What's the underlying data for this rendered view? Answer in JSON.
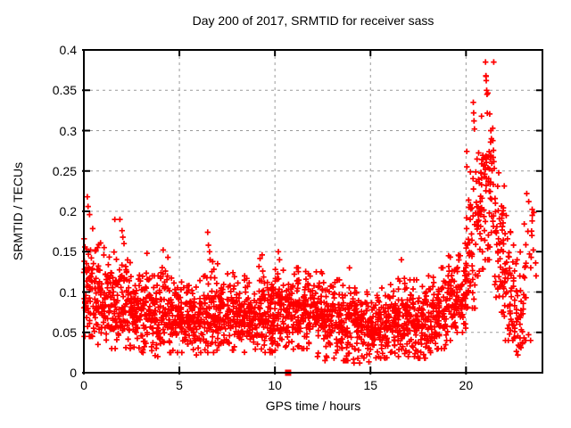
{
  "page": {
    "background": "#ffffff"
  },
  "chart_data": {
    "type": "scatter",
    "title": "Day 200 of 2017, SRMTID for receiver sass",
    "xlabel": "GPS time / hours",
    "ylabel": "SRMTID / TECUs",
    "xlim": [
      0,
      24
    ],
    "ylim": [
      0,
      0.4
    ],
    "xticks": [
      {
        "v": 0,
        "label": "0"
      },
      {
        "v": 5,
        "label": "5"
      },
      {
        "v": 10,
        "label": "10"
      },
      {
        "v": 15,
        "label": "15"
      },
      {
        "v": 20,
        "label": "20"
      }
    ],
    "yticks": [
      {
        "v": 0,
        "label": "0"
      },
      {
        "v": 0.05,
        "label": "0.05"
      },
      {
        "v": 0.1,
        "label": "0.1"
      },
      {
        "v": 0.15,
        "label": "0.15"
      },
      {
        "v": 0.2,
        "label": "0.2"
      },
      {
        "v": 0.25,
        "label": "0.25"
      },
      {
        "v": 0.3,
        "label": "0.3"
      },
      {
        "v": 0.35,
        "label": "0.35"
      },
      {
        "v": 0.4,
        "label": "0.4"
      }
    ],
    "grid": {
      "style": "dashed",
      "color": "#9a9a9a"
    },
    "border_color": "#000000",
    "legend": "none",
    "render_seed": 42,
    "series": [
      {
        "name": "srmtid-scatter",
        "marker": "plus",
        "color": "#ff0000",
        "bins_format": "[x_start_hour, x_end_hour, n_points, y_mean, y_sd, y_min, y_max]",
        "bins": [
          [
            0.0,
            0.5,
            62,
            0.1,
            0.038,
            0.045,
            0.225
          ],
          [
            0.5,
            1.0,
            55,
            0.095,
            0.03,
            0.035,
            0.17
          ],
          [
            1.0,
            1.5,
            55,
            0.09,
            0.028,
            0.03,
            0.155
          ],
          [
            1.5,
            2.0,
            55,
            0.088,
            0.028,
            0.03,
            0.19
          ],
          [
            2.0,
            2.5,
            55,
            0.085,
            0.03,
            0.03,
            0.176
          ],
          [
            2.5,
            3.0,
            55,
            0.08,
            0.026,
            0.03,
            0.14
          ],
          [
            3.0,
            3.5,
            55,
            0.075,
            0.026,
            0.025,
            0.148
          ],
          [
            3.5,
            4.0,
            55,
            0.07,
            0.024,
            0.02,
            0.12
          ],
          [
            4.0,
            4.5,
            55,
            0.075,
            0.026,
            0.025,
            0.15
          ],
          [
            4.5,
            5.0,
            55,
            0.07,
            0.022,
            0.025,
            0.125
          ],
          [
            5.0,
            5.5,
            55,
            0.068,
            0.02,
            0.025,
            0.115
          ],
          [
            5.5,
            6.0,
            55,
            0.065,
            0.02,
            0.022,
            0.11
          ],
          [
            6.0,
            6.5,
            55,
            0.07,
            0.022,
            0.025,
            0.12
          ],
          [
            6.5,
            7.0,
            55,
            0.075,
            0.028,
            0.025,
            0.174
          ],
          [
            7.0,
            7.5,
            55,
            0.068,
            0.022,
            0.025,
            0.115
          ],
          [
            7.5,
            8.0,
            55,
            0.072,
            0.024,
            0.028,
            0.13
          ],
          [
            8.0,
            8.5,
            55,
            0.07,
            0.022,
            0.025,
            0.12
          ],
          [
            8.5,
            9.0,
            55,
            0.07,
            0.022,
            0.025,
            0.12
          ],
          [
            9.0,
            9.5,
            55,
            0.073,
            0.026,
            0.025,
            0.146
          ],
          [
            9.5,
            10.0,
            55,
            0.07,
            0.022,
            0.025,
            0.12
          ],
          [
            10.0,
            10.5,
            55,
            0.078,
            0.027,
            0.028,
            0.15
          ],
          [
            10.5,
            11.0,
            55,
            0.075,
            0.024,
            0.028,
            0.125
          ],
          [
            11.0,
            11.5,
            55,
            0.08,
            0.026,
            0.03,
            0.13
          ],
          [
            11.5,
            12.0,
            55,
            0.08,
            0.026,
            0.03,
            0.13
          ],
          [
            12.0,
            12.5,
            55,
            0.074,
            0.027,
            0.02,
            0.125
          ],
          [
            12.5,
            13.0,
            55,
            0.07,
            0.027,
            0.015,
            0.12
          ],
          [
            13.0,
            13.5,
            55,
            0.065,
            0.024,
            0.018,
            0.115
          ],
          [
            13.5,
            14.0,
            55,
            0.06,
            0.022,
            0.015,
            0.13
          ],
          [
            14.0,
            14.5,
            55,
            0.058,
            0.024,
            0.012,
            0.105
          ],
          [
            14.5,
            15.0,
            55,
            0.055,
            0.021,
            0.01,
            0.1
          ],
          [
            15.0,
            15.5,
            55,
            0.058,
            0.021,
            0.015,
            0.1
          ],
          [
            15.5,
            16.0,
            55,
            0.06,
            0.021,
            0.018,
            0.105
          ],
          [
            16.0,
            16.5,
            55,
            0.064,
            0.024,
            0.02,
            0.13
          ],
          [
            16.5,
            17.0,
            55,
            0.068,
            0.026,
            0.02,
            0.14
          ],
          [
            17.0,
            17.5,
            55,
            0.064,
            0.024,
            0.02,
            0.115
          ],
          [
            17.5,
            18.0,
            55,
            0.064,
            0.024,
            0.018,
            0.115
          ],
          [
            18.0,
            18.5,
            55,
            0.068,
            0.024,
            0.025,
            0.12
          ],
          [
            18.5,
            19.0,
            55,
            0.078,
            0.026,
            0.03,
            0.13
          ],
          [
            19.0,
            19.5,
            55,
            0.088,
            0.028,
            0.04,
            0.145
          ],
          [
            19.5,
            20.0,
            55,
            0.1,
            0.03,
            0.05,
            0.165
          ],
          [
            20.0,
            20.5,
            55,
            0.15,
            0.048,
            0.08,
            0.33
          ],
          [
            20.5,
            21.0,
            55,
            0.215,
            0.055,
            0.12,
            0.33
          ],
          [
            21.0,
            21.5,
            55,
            0.235,
            0.06,
            0.14,
            0.385
          ],
          [
            21.5,
            22.0,
            55,
            0.15,
            0.042,
            0.075,
            0.25
          ],
          [
            22.0,
            22.5,
            50,
            0.11,
            0.038,
            0.04,
            0.21
          ],
          [
            22.5,
            23.0,
            40,
            0.07,
            0.028,
            0.022,
            0.15
          ],
          [
            23.0,
            23.4,
            18,
            0.1,
            0.05,
            0.04,
            0.225
          ],
          [
            23.4,
            23.7,
            8,
            0.16,
            0.04,
            0.12,
            0.22
          ]
        ],
        "outlier_points": [
          [
            0.18,
            0.218
          ],
          [
            0.22,
            0.206
          ],
          [
            0.3,
            0.196
          ],
          [
            0.35,
            0.152
          ],
          [
            1.62,
            0.19
          ],
          [
            2.0,
            0.176
          ],
          [
            2.04,
            0.168
          ],
          [
            2.1,
            0.16
          ],
          [
            3.3,
            0.148
          ],
          [
            4.15,
            0.152
          ],
          [
            4.4,
            0.143
          ],
          [
            6.48,
            0.174
          ],
          [
            6.52,
            0.158
          ],
          [
            6.58,
            0.15
          ],
          [
            9.33,
            0.146
          ],
          [
            10.18,
            0.15
          ],
          [
            10.24,
            0.14
          ],
          [
            13.9,
            0.13
          ],
          [
            16.62,
            0.14
          ],
          [
            20.38,
            0.335
          ],
          [
            20.4,
            0.322
          ],
          [
            20.42,
            0.312
          ],
          [
            20.44,
            0.302
          ],
          [
            21.02,
            0.385
          ],
          [
            21.04,
            0.368
          ],
          [
            21.06,
            0.362
          ],
          [
            21.08,
            0.35
          ],
          [
            21.1,
            0.345
          ],
          [
            21.3,
            0.3
          ],
          [
            21.33,
            0.29
          ],
          [
            22.62,
            0.135
          ],
          [
            23.18,
            0.222
          ],
          [
            23.28,
            0.212
          ],
          [
            23.45,
            0.17
          ],
          [
            23.52,
            0.152
          ]
        ]
      },
      {
        "name": "event-flag",
        "marker": "filled-square",
        "color": "#ff0000",
        "points": [
          [
            10.69,
            0
          ]
        ]
      }
    ]
  }
}
